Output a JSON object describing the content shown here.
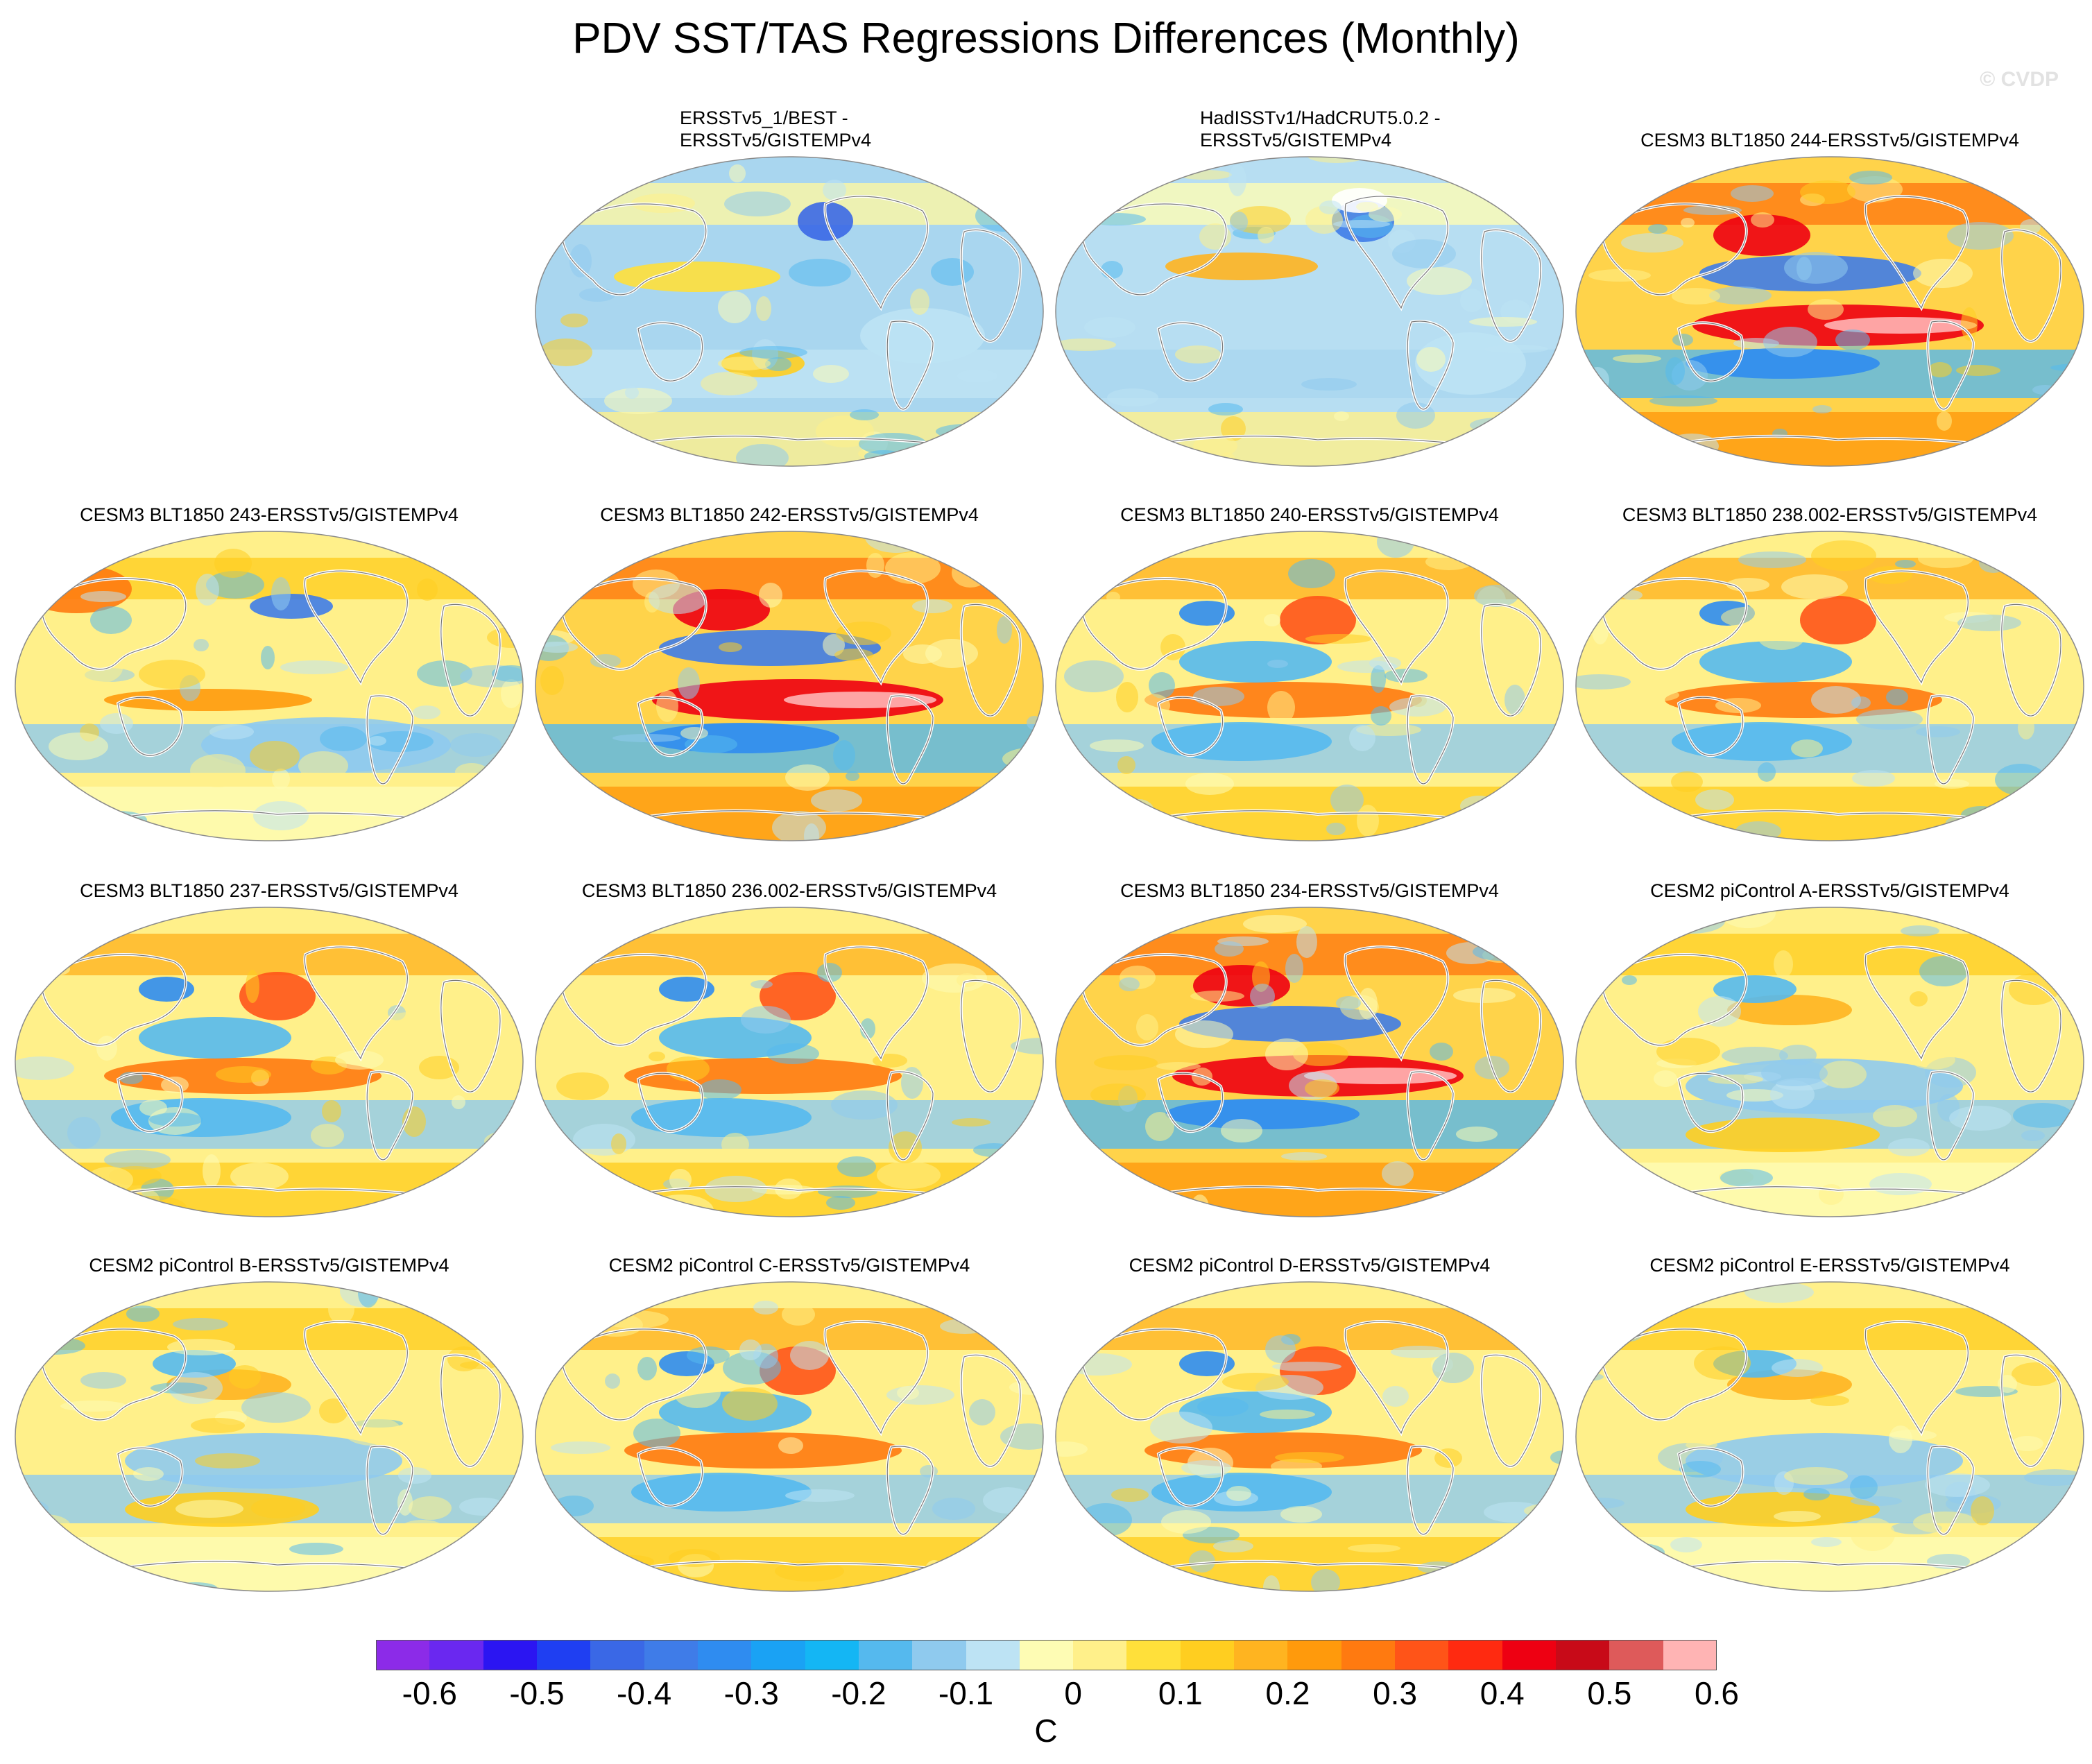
{
  "title": "PDV SST/TAS Regressions Differences (Monthly)",
  "watermark": "© CVDP",
  "panels": [
    {
      "title": "ERSSTv5_1/BEST -",
      "title2": "ERSSTv5/GISTEMPv4",
      "pattern": "obs1"
    },
    {
      "title": "HadISSTv1/HadCRUT5.0.2 -",
      "title2": "ERSSTv5/GISTEMPv4",
      "pattern": "obs2"
    },
    {
      "title": "CESM3 BLT1850 244-ERSSTv5/GISTEMPv4",
      "pattern": "strong_warm"
    },
    {
      "title": "CESM3 BLT1850 243-ERSSTv5/GISTEMPv4",
      "pattern": "moderate"
    },
    {
      "title": "CESM3 BLT1850 242-ERSSTv5/GISTEMPv4",
      "pattern": "strong_warm"
    },
    {
      "title": "CESM3 BLT1850 240-ERSSTv5/GISTEMPv4",
      "pattern": "warm"
    },
    {
      "title": "CESM3 BLT1850 238.002-ERSSTv5/GISTEMPv4",
      "pattern": "warm"
    },
    {
      "title": "CESM3 BLT1850 237-ERSSTv5/GISTEMPv4",
      "pattern": "warm"
    },
    {
      "title": "CESM3 BLT1850 236.002-ERSSTv5/GISTEMPv4",
      "pattern": "warm"
    },
    {
      "title": "CESM3 BLT1850 234-ERSSTv5/GISTEMPv4",
      "pattern": "strong_warm"
    },
    {
      "title": "CESM2 piControl A-ERSSTv5/GISTEMPv4",
      "pattern": "mild"
    },
    {
      "title": "CESM2 piControl B-ERSSTv5/GISTEMPv4",
      "pattern": "mild"
    },
    {
      "title": "CESM2 piControl C-ERSSTv5/GISTEMPv4",
      "pattern": "warm"
    },
    {
      "title": "CESM2 piControl D-ERSSTv5/GISTEMPv4",
      "pattern": "warm"
    },
    {
      "title": "CESM2 piControl E-ERSSTv5/GISTEMPv4",
      "pattern": "mild"
    }
  ],
  "colorbar": {
    "colors": [
      "#8c2be8",
      "#6a28f0",
      "#2b15f2",
      "#1f3ff2",
      "#3a68e6",
      "#3f7ce8",
      "#2f8cf0",
      "#1aa2f4",
      "#14b6f4",
      "#55b9ee",
      "#8fcaee",
      "#bde3f4",
      "#fefcb4",
      "#fff08a",
      "#ffe03a",
      "#ffce20",
      "#ffb420",
      "#ff9a0c",
      "#ff7a10",
      "#ff5418",
      "#ff2a10",
      "#ee0012",
      "#c80a18",
      "#de5a5a",
      "#ffb4b4"
    ],
    "labels": [
      "-0.6",
      "-0.5",
      "-0.4",
      "-0.3",
      "-0.2",
      "-0.1",
      "0",
      "0.1",
      "0.2",
      "0.3",
      "0.4",
      "0.5",
      "0.6"
    ],
    "unit": "C"
  }
}
